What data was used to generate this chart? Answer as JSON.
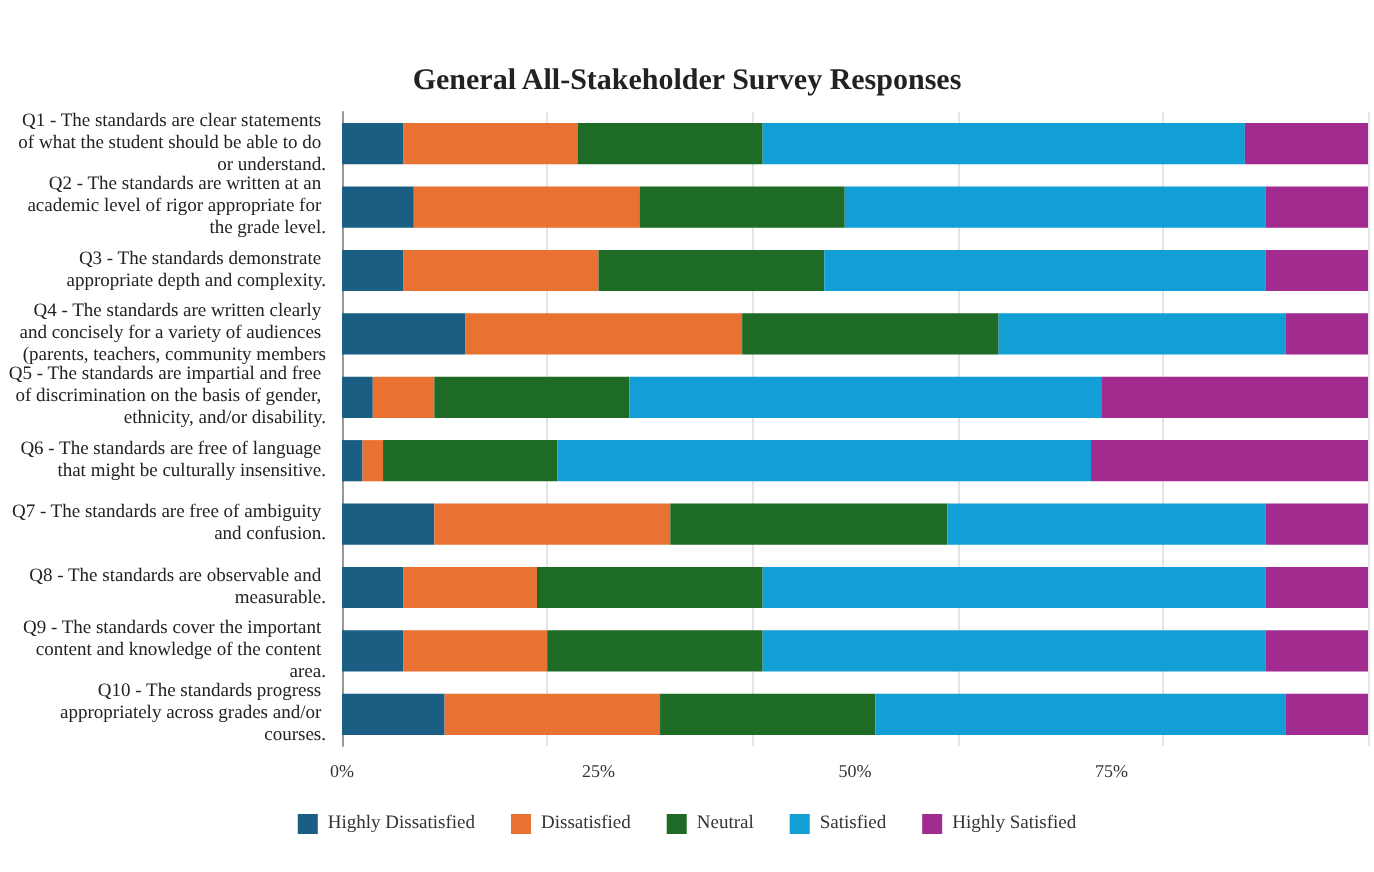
{
  "chart_data": {
    "type": "bar",
    "orientation": "horizontal",
    "stacked": true,
    "title": "General All-Stakeholder Survey Responses",
    "categories": [
      "Q1 - The standards are clear statements of what the student should be able to do or understand.",
      "Q2 - The standards are written at an academic level of rigor appropriate for the grade level.",
      "Q3 - The standards demonstrate appropriate depth and complexity.",
      "Q4 - The standards are written clearly and concisely for a variety of audiences (parents, teachers, community members",
      "Q5 - The standards are impartial and free of discrimination on the basis of gender, ethnicity, and/or disability.",
      "Q6 - The standards are free of language that might be culturally insensitive.",
      "Q7 - The standards are free of ambiguity and confusion.",
      "Q8 - The standards are observable and measurable.",
      "Q9 - The standards cover the important content and knowledge of the content area.",
      "Q10 - The standards progress appropriately across grades and/or courses."
    ],
    "series": [
      {
        "name": "Highly Dissatisfied",
        "color": "#1a5e84",
        "values": [
          6,
          7,
          6,
          12,
          3,
          2,
          9,
          6,
          6,
          10
        ]
      },
      {
        "name": "Dissatisfied",
        "color": "#e97132",
        "values": [
          17,
          22,
          19,
          27,
          6,
          2,
          23,
          13,
          14,
          21
        ]
      },
      {
        "name": "Neutral",
        "color": "#1e6b26",
        "values": [
          18,
          20,
          22,
          25,
          19,
          17,
          27,
          22,
          21,
          21
        ]
      },
      {
        "name": "Satisfied",
        "color": "#119fd6",
        "values": [
          47,
          41,
          43,
          28,
          46,
          52,
          31,
          49,
          49,
          40
        ]
      },
      {
        "name": "Highly Satisfied",
        "color": "#a22b8f",
        "values": [
          12,
          10,
          10,
          8,
          26,
          27,
          10,
          10,
          10,
          8
        ]
      }
    ],
    "xlim": [
      0,
      100
    ],
    "xticks": [
      {
        "value": 0,
        "label": "0%"
      },
      {
        "value": 25,
        "label": "25%"
      },
      {
        "value": 50,
        "label": "50%"
      },
      {
        "value": 75,
        "label": "75%"
      },
      {
        "value": 100,
        "label": null
      }
    ],
    "grid": "x",
    "legend": "bottom"
  }
}
